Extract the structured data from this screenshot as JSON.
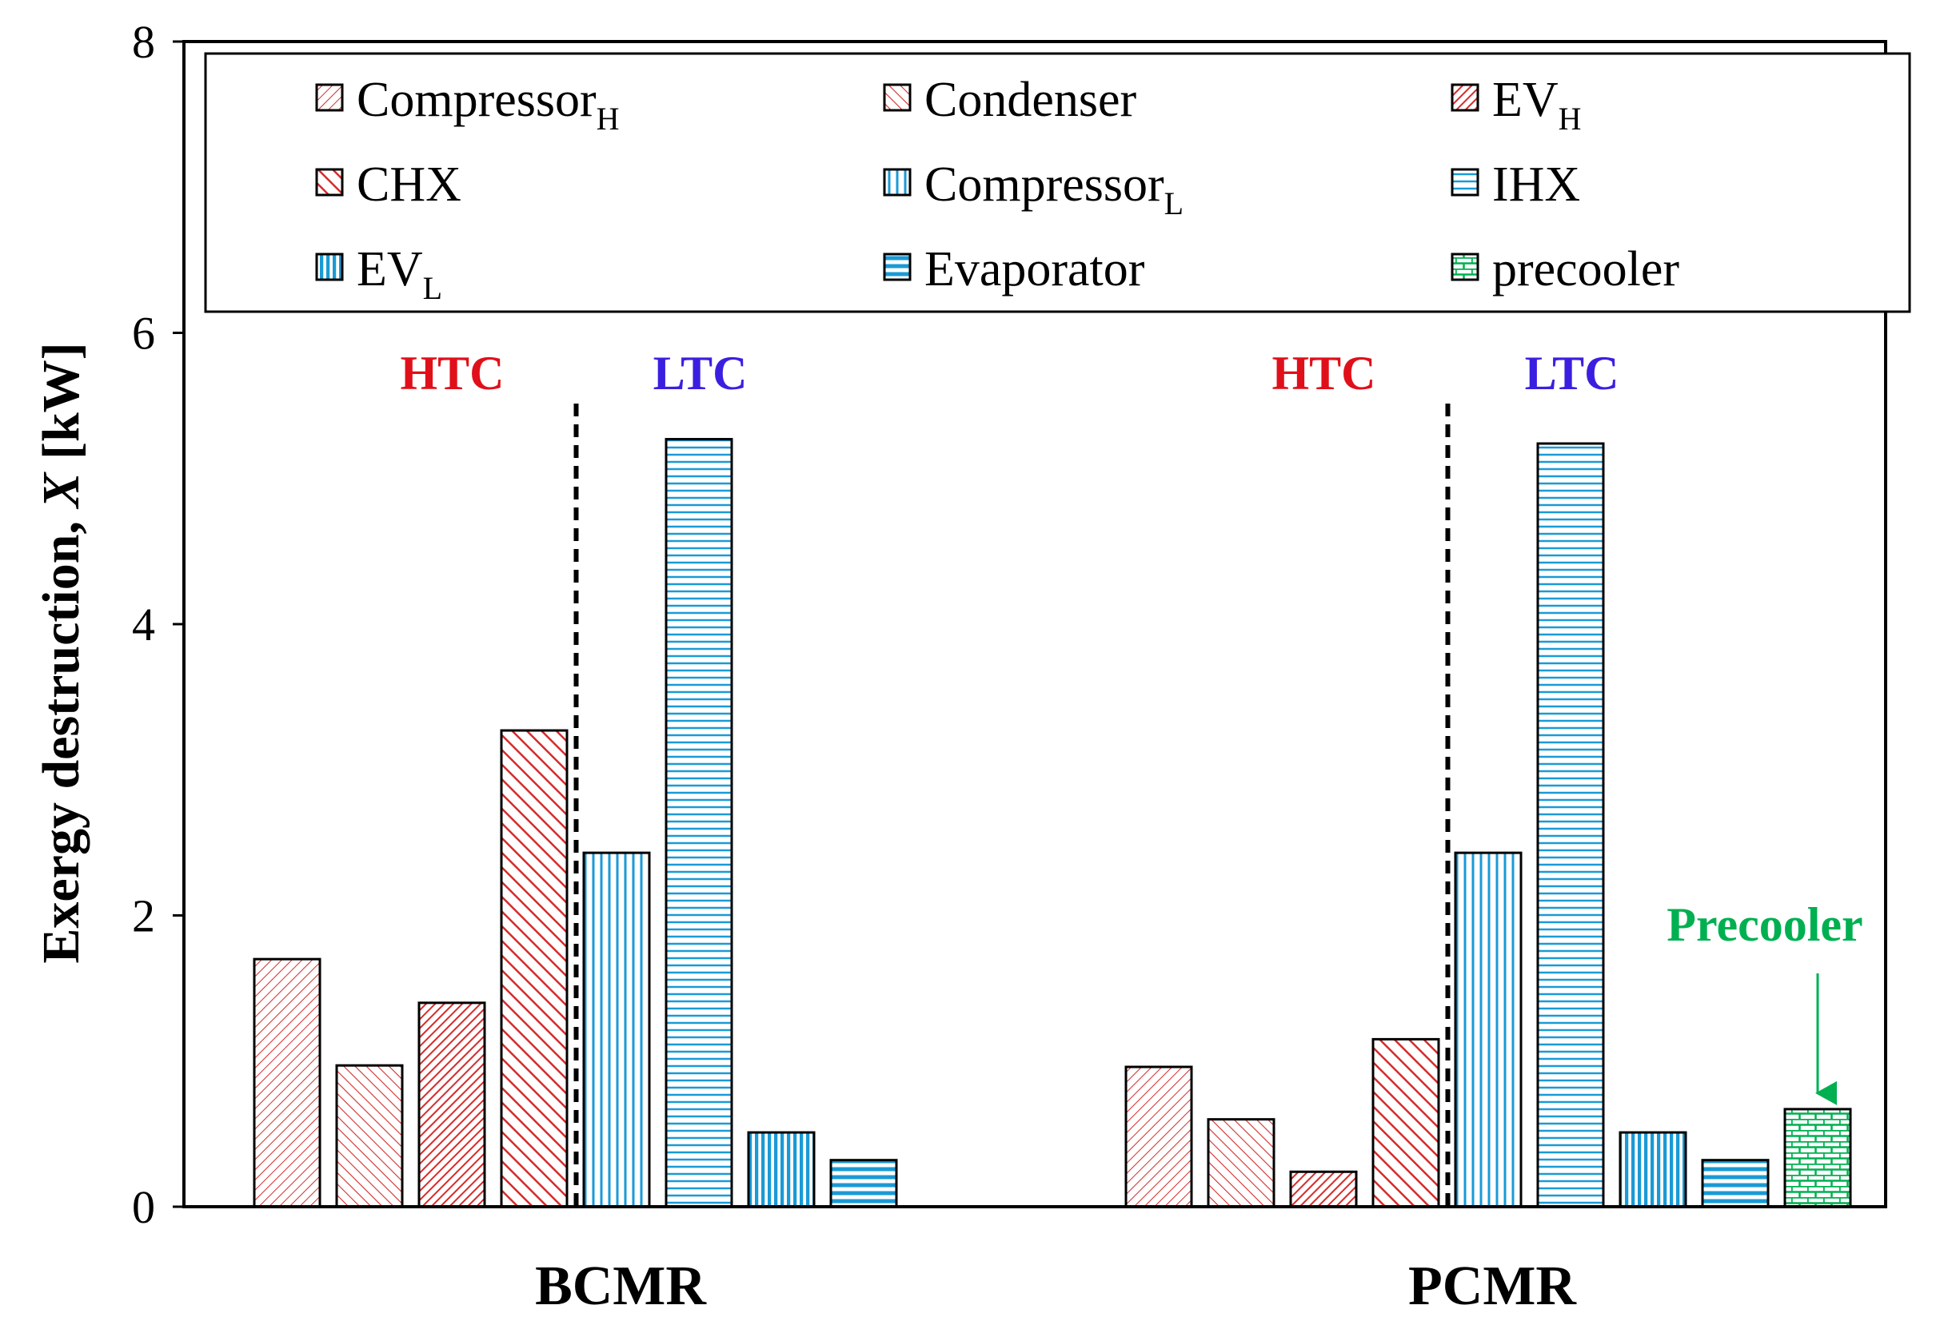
{
  "chart_data": {
    "type": "bar",
    "title": "",
    "xlabel": "",
    "ylabel": "Exergy destruction, X [kW]",
    "ylabel_parts": [
      "Exergy destruction, ",
      "X",
      " [kW]"
    ],
    "ylim": [
      0,
      8
    ],
    "yticks": [
      0,
      2,
      4,
      6,
      8
    ],
    "categories": [
      "BCMR",
      "PCMR"
    ],
    "series": [
      {
        "name": "CompressorH",
        "label": "Compressor",
        "sub": "H",
        "color": "#d62b2b",
        "pattern": "diag-fine",
        "values": [
          1.7,
          0.96
        ]
      },
      {
        "name": "Condenser",
        "label": "Condenser",
        "sub": "",
        "color": "#d62b2b",
        "pattern": "diag-med",
        "values": [
          0.97,
          0.6
        ]
      },
      {
        "name": "EVH",
        "label": "EV",
        "sub": "H",
        "color": "#d62b2b",
        "pattern": "diag-dense",
        "values": [
          1.4,
          0.24
        ]
      },
      {
        "name": "CHX",
        "label": "CHX",
        "sub": "",
        "color": "#d62b2b",
        "pattern": "diag-wide",
        "values": [
          3.27,
          1.15
        ]
      },
      {
        "name": "CompressorL",
        "label": "Compressor",
        "sub": "L",
        "color": "#1a9ad6",
        "pattern": "vert",
        "values": [
          2.43,
          2.43
        ]
      },
      {
        "name": "IHX",
        "label": "IHX",
        "sub": "",
        "color": "#1a9ad6",
        "pattern": "horiz",
        "values": [
          5.27,
          5.24
        ]
      },
      {
        "name": "EVL",
        "label": "EV",
        "sub": "L",
        "color": "#1a9ad6",
        "pattern": "vert-dense",
        "values": [
          0.51,
          0.51
        ]
      },
      {
        "name": "Evaporator",
        "label": "Evaporator",
        "sub": "",
        "color": "#1a9ad6",
        "pattern": "horiz-wide",
        "values": [
          0.32,
          0.32
        ]
      },
      {
        "name": "precooler",
        "label": "precooler",
        "sub": "",
        "color": "#00b050",
        "pattern": "brick",
        "values": [
          null,
          0.67
        ]
      }
    ],
    "group_labels": {
      "htc": "HTC",
      "ltc": "LTC"
    },
    "colors": {
      "htc": "#e0101a",
      "ltc": "#3b1fe0",
      "precooler": "#00b050"
    },
    "annotation": {
      "text": "Precooler",
      "target_series": "precooler",
      "target_category": "PCMR"
    },
    "legend_position": "top"
  }
}
